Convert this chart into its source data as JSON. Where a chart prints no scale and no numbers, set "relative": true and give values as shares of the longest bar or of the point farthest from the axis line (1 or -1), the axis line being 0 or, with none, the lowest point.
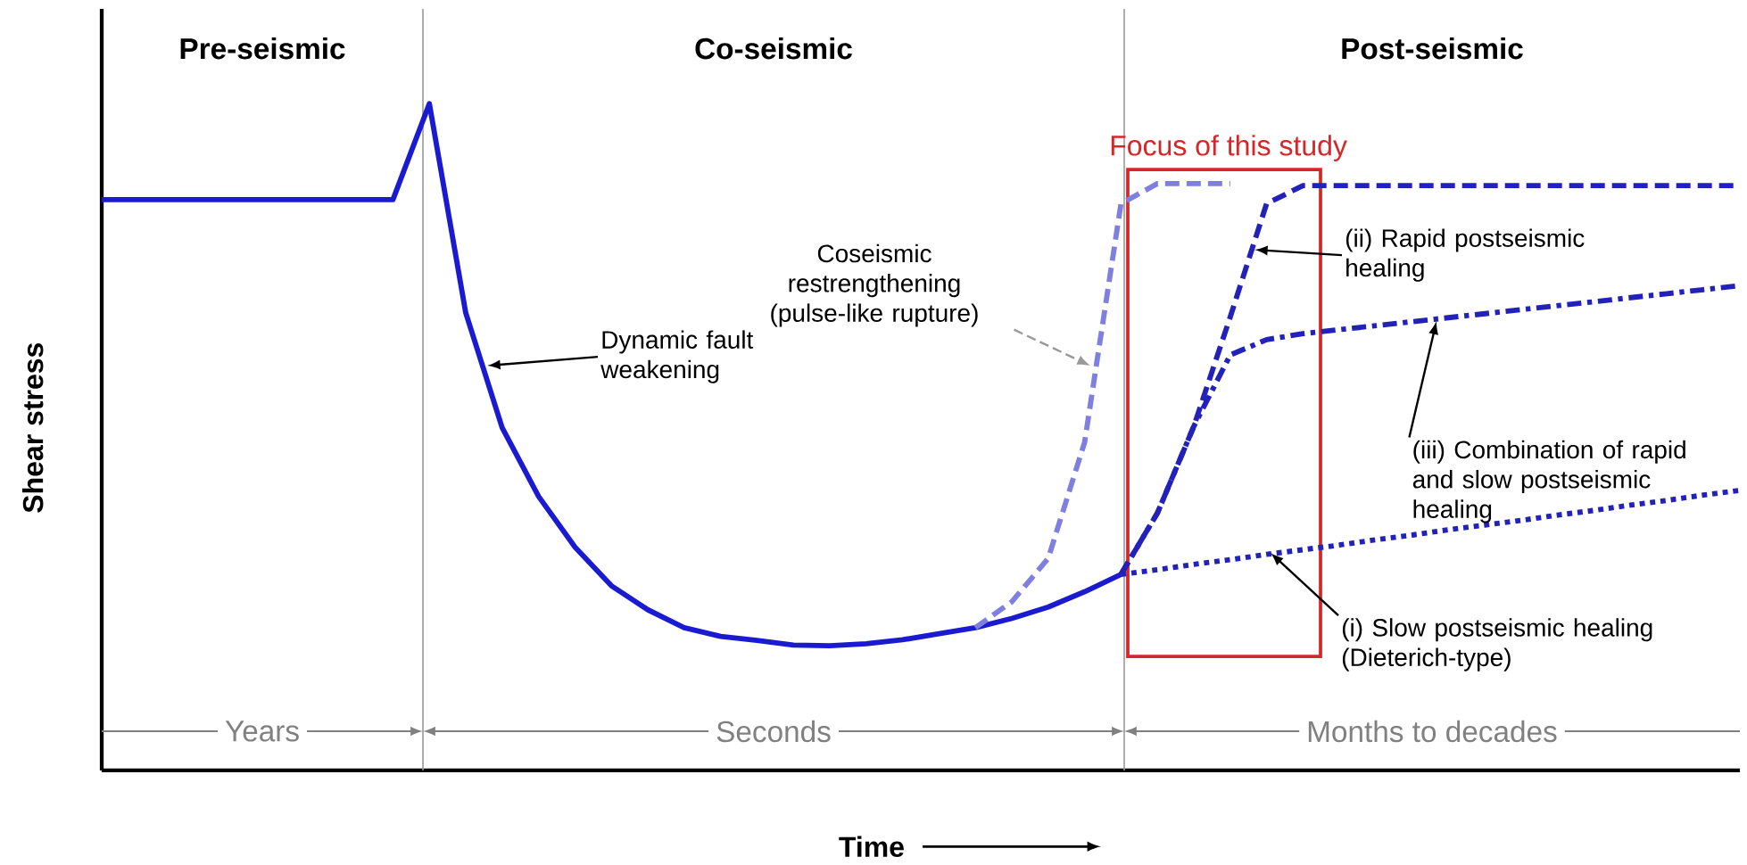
{
  "chart_data": {
    "type": "line",
    "relative": true,
    "xlabel": "Time",
    "ylabel": "Shear stress",
    "categories": [
      null,
      null,
      null,
      null,
      null,
      null,
      null,
      null,
      null,
      null,
      null,
      null,
      null,
      null,
      null,
      null,
      null,
      null,
      null,
      null,
      null,
      null,
      null,
      null,
      null,
      null,
      null,
      null,
      null,
      null,
      null,
      null,
      null,
      null,
      null,
      null,
      null,
      null,
      null,
      null,
      null,
      null,
      null,
      null,
      null,
      null
    ],
    "series": [
      {
        "color": "#1a1ad0",
        "line_style": "solid",
        "values": [
          0.856,
          0.856,
          0.856,
          0.856,
          0.856,
          0.856,
          0.856,
          0.856,
          0.856,
          1,
          0.686,
          0.514,
          0.411,
          0.335,
          0.277,
          0.241,
          0.214,
          0.201,
          0.195,
          0.188,
          0.187,
          0.19,
          0.196,
          0.205,
          0.214,
          0.228,
          0.245,
          0.268,
          0.294,
          null,
          null,
          null,
          null,
          null,
          null,
          null,
          null,
          null,
          null,
          null,
          null,
          null,
          null,
          null,
          null,
          null
        ]
      },
      {
        "color": "#7f7fdf",
        "line_style": "dashed",
        "values": [
          null,
          null,
          null,
          null,
          null,
          null,
          null,
          null,
          null,
          null,
          null,
          null,
          null,
          null,
          null,
          null,
          null,
          null,
          null,
          null,
          null,
          null,
          null,
          null,
          0.214,
          0.253,
          0.318,
          0.492,
          0.85,
          0.88,
          0.88,
          0.88,
          null,
          null,
          null,
          null,
          null,
          null,
          null,
          null,
          null,
          null,
          null,
          null,
          null,
          null
        ]
      },
      {
        "color": "#2222bb",
        "line_style": "dashed",
        "values": [
          null,
          null,
          null,
          null,
          null,
          null,
          null,
          null,
          null,
          null,
          null,
          null,
          null,
          null,
          null,
          null,
          null,
          null,
          null,
          null,
          null,
          null,
          null,
          null,
          null,
          null,
          null,
          null,
          0.294,
          0.386,
          0.516,
          0.68,
          0.85,
          0.877,
          0.877,
          0.877,
          0.877,
          0.877,
          0.877,
          0.877,
          0.877,
          0.877,
          0.877,
          0.877,
          0.877,
          0.877
        ]
      },
      {
        "color": "#2222bb",
        "line_style": "dashdot",
        "values": [
          null,
          null,
          null,
          null,
          null,
          null,
          null,
          null,
          null,
          null,
          null,
          null,
          null,
          null,
          null,
          null,
          null,
          null,
          null,
          null,
          null,
          null,
          null,
          null,
          null,
          null,
          null,
          null,
          0.294,
          0.386,
          0.516,
          0.623,
          0.646,
          0.655,
          0.661,
          0.667,
          0.673,
          0.679,
          0.685,
          0.691,
          0.697,
          0.703,
          0.709,
          0.715,
          0.721,
          0.727
        ]
      },
      {
        "color": "#2222bb",
        "line_style": "dotted",
        "values": [
          null,
          null,
          null,
          null,
          null,
          null,
          null,
          null,
          null,
          null,
          null,
          null,
          null,
          null,
          null,
          null,
          null,
          null,
          null,
          null,
          null,
          null,
          null,
          null,
          null,
          null,
          null,
          null,
          0.294,
          0.301,
          0.309,
          0.316,
          0.324,
          0.331,
          0.338,
          0.346,
          0.353,
          0.361,
          0.368,
          0.375,
          0.383,
          0.39,
          0.398,
          0.405,
          0.413,
          0.42
        ]
      }
    ],
    "annotations": [
      "Pre-seismic",
      "Co-seismic",
      "Post-seismic",
      "Years",
      "Seconds",
      "Months to decades",
      "Dynamic fault weakening",
      "Coseismic restrengthening (pulse-like rupture)",
      "(ii) Rapid postseismic healing",
      "(iii) Combination of rapid and slow postseismic healing",
      "(i) Slow postseismic healing (Dieterich-type)",
      "Focus of this study"
    ]
  }
}
